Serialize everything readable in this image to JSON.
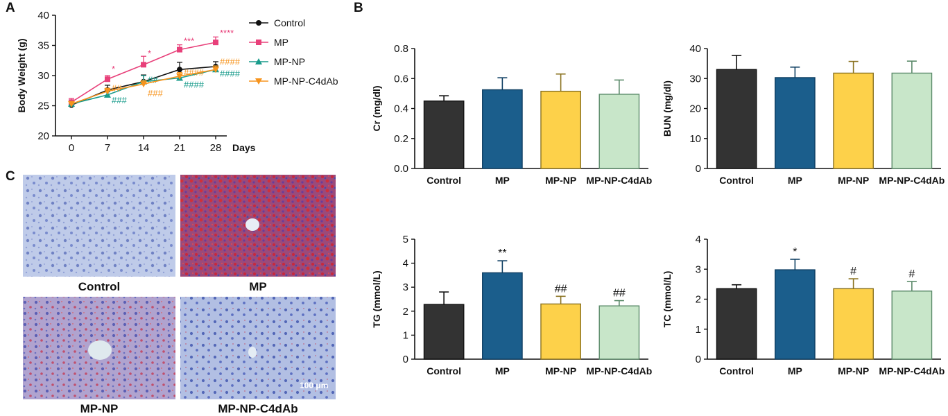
{
  "panels": {
    "a": "A",
    "b": "B",
    "c": "C"
  },
  "chart_data": [
    {
      "id": "A",
      "type": "line",
      "ylabel": "Body Weight (g)",
      "xlabel": "Days",
      "x": [
        0,
        7,
        14,
        21,
        28
      ],
      "xticks": [
        "0",
        "7",
        "14",
        "21",
        "28"
      ],
      "ylim": [
        20,
        40
      ],
      "yticks": [
        "20",
        "25",
        "30",
        "35",
        "40"
      ],
      "legend_position": "right",
      "series": [
        {
          "name": "Control",
          "values": [
            25.1,
            27.6,
            29.0,
            31.0,
            31.5
          ],
          "err": [
            0.4,
            0.8,
            1.1,
            1.2,
            0.8
          ],
          "color": "#111111",
          "marker": "circle"
        },
        {
          "name": "MP",
          "values": [
            25.6,
            29.4,
            31.8,
            34.3,
            35.5
          ],
          "err": [
            0.6,
            0.6,
            1.4,
            0.8,
            0.9
          ],
          "color": "#e8407a",
          "marker": "square",
          "sig": [
            "",
            "*",
            "*",
            "***",
            "****"
          ]
        },
        {
          "name": "MP-NP",
          "values": [
            25.3,
            26.8,
            29.0,
            29.6,
            31.0
          ],
          "err": [
            0.4,
            0.5,
            1.0,
            0.6,
            0.6
          ],
          "color": "#1a9c8c",
          "marker": "triangle-up",
          "sig": [
            "",
            "###",
            "##",
            "####",
            "####"
          ]
        },
        {
          "name": "MP-NP-C4dAb",
          "values": [
            25.3,
            27.4,
            28.6,
            29.9,
            31.0
          ],
          "err": [
            0.4,
            0.5,
            0.6,
            0.6,
            0.6
          ],
          "color": "#f7941d",
          "marker": "triangle-down",
          "sig": [
            "",
            "##",
            "###",
            "####",
            "####"
          ]
        }
      ]
    },
    {
      "id": "Cr",
      "type": "bar",
      "ylabel": "Cr (mg/dl)",
      "categories": [
        "Control",
        "MP",
        "MP-NP",
        "MP-NP-C4dAb"
      ],
      "values": [
        0.45,
        0.525,
        0.515,
        0.495
      ],
      "errors": [
        0.035,
        0.08,
        0.115,
        0.095
      ],
      "ylim": [
        0,
        0.8
      ],
      "yticks": [
        "0.0",
        "0.2",
        "0.4",
        "0.6",
        "0.8"
      ],
      "annotations": [
        "",
        "",
        "",
        ""
      ]
    },
    {
      "id": "BUN",
      "type": "bar",
      "ylabel": "BUN (mg/dl)",
      "categories": [
        "Control",
        "MP",
        "MP-NP",
        "MP-NP-C4dAb"
      ],
      "values": [
        33.0,
        30.3,
        31.8,
        31.8
      ],
      "errors": [
        4.7,
        3.5,
        3.9,
        4.0
      ],
      "ylim": [
        0,
        40
      ],
      "yticks": [
        "0",
        "10",
        "20",
        "30",
        "40"
      ],
      "annotations": [
        "",
        "",
        "",
        ""
      ]
    },
    {
      "id": "TG",
      "type": "bar",
      "ylabel": "TG (mmol/L)",
      "categories": [
        "Control",
        "MP",
        "MP-NP",
        "MP-NP-C4dAb"
      ],
      "values": [
        2.28,
        3.6,
        2.3,
        2.22
      ],
      "errors": [
        0.52,
        0.5,
        0.32,
        0.22
      ],
      "ylim": [
        0,
        5
      ],
      "yticks": [
        "0",
        "1",
        "2",
        "3",
        "4",
        "5"
      ],
      "annotations": [
        "",
        "**",
        "##",
        "##"
      ]
    },
    {
      "id": "TC",
      "type": "bar",
      "ylabel": "TC (mmol/L)",
      "categories": [
        "Control",
        "MP",
        "MP-NP",
        "MP-NP-C4dAb"
      ],
      "values": [
        2.35,
        2.98,
        2.35,
        2.27
      ],
      "errors": [
        0.13,
        0.35,
        0.33,
        0.32
      ],
      "ylim": [
        0,
        4
      ],
      "yticks": [
        "0",
        "1",
        "2",
        "3",
        "4"
      ],
      "annotations": [
        "",
        "*",
        "#",
        "#"
      ]
    }
  ],
  "bar_colors": [
    "#333333",
    "#1b5e8c",
    "#fdd14a",
    "#c8e6c9"
  ],
  "bar_edges": [
    "#111111",
    "#0f3f63",
    "#8a7220",
    "#5b8a6a"
  ],
  "micrographs": [
    {
      "label": "Control",
      "stain": "control"
    },
    {
      "label": "MP",
      "stain": "mp"
    },
    {
      "label": "MP-NP",
      "stain": "mpnp"
    },
    {
      "label": "MP-NP-C4dAb",
      "stain": "mpnpc4dab"
    }
  ],
  "scale_bar": "100 μm"
}
